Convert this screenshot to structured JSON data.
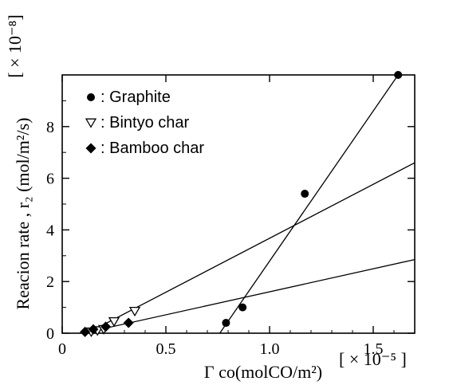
{
  "chart_data": {
    "type": "scatter",
    "xlabel": "Γ co(molCO/m²)",
    "ylabel": "Reacion rate , r₂ (mol/m²/s)",
    "x_multiplier": "[ × 10⁻⁵ ]",
    "y_multiplier": "[ × 10⁻⁸]",
    "xlim": [
      0,
      1.7
    ],
    "ylim": [
      0,
      10
    ],
    "x_ticks": [
      0,
      0.5,
      1.0,
      1.5
    ],
    "x_tick_labels": [
      "0",
      "0.5",
      "1.0",
      "1.5"
    ],
    "y_ticks": [
      0,
      2,
      4,
      6,
      8
    ],
    "y_tick_labels": [
      "0",
      "2",
      "4",
      "6",
      "8"
    ],
    "grid": false,
    "legend_position": "top-left",
    "series": [
      {
        "name": ": Graphite",
        "marker": "circle",
        "points": [
          [
            0.79,
            0.4
          ],
          [
            0.87,
            1.0
          ],
          [
            1.17,
            5.4
          ],
          [
            1.62,
            10.0
          ]
        ],
        "fit_line": [
          [
            0.76,
            0.0
          ],
          [
            1.62,
            10.0
          ]
        ]
      },
      {
        "name": ": Bintyo char",
        "marker": "triangle-down-open",
        "points": [
          [
            0.14,
            0.05
          ],
          [
            0.17,
            0.1
          ],
          [
            0.2,
            0.15
          ],
          [
            0.25,
            0.45
          ],
          [
            0.35,
            0.85
          ]
        ],
        "fit_line": [
          [
            0.12,
            0.0
          ],
          [
            1.7,
            6.6
          ]
        ]
      },
      {
        "name": ": Bamboo char",
        "marker": "diamond",
        "points": [
          [
            0.11,
            0.05
          ],
          [
            0.15,
            0.15
          ],
          [
            0.21,
            0.25
          ],
          [
            0.32,
            0.4
          ]
        ],
        "fit_line": [
          [
            0.1,
            0.0
          ],
          [
            1.7,
            2.85
          ]
        ]
      }
    ]
  }
}
